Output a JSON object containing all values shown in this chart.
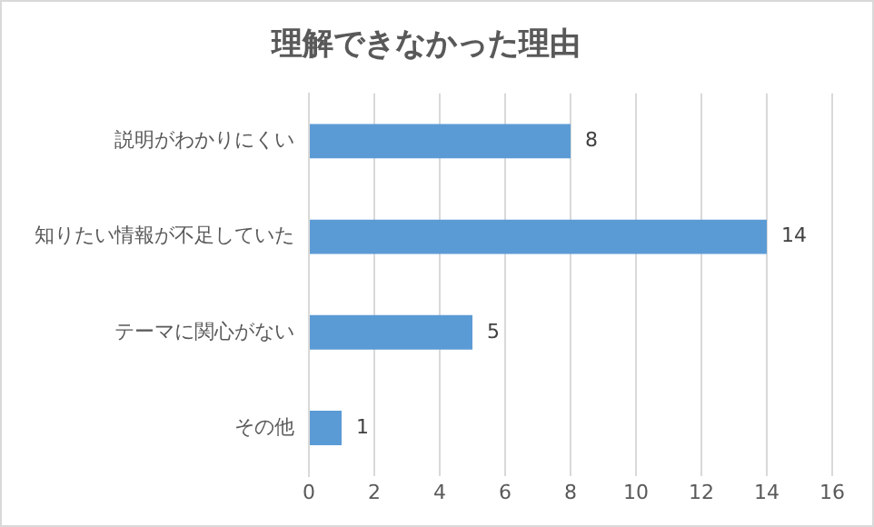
{
  "chart_data": {
    "type": "bar",
    "orientation": "horizontal",
    "title": "理解できなかった理由",
    "categories": [
      "説明がわかりにくい",
      "知りたい情報が不足していた",
      "テーマに関心がない",
      "その他"
    ],
    "values": [
      8,
      14,
      5,
      1
    ],
    "color": "#5b9bd5",
    "xlim": [
      0,
      16
    ],
    "xticks": [
      0,
      2,
      4,
      6,
      8,
      10,
      12,
      14,
      16
    ],
    "grid": "x",
    "data_labels": true,
    "legend": false
  }
}
